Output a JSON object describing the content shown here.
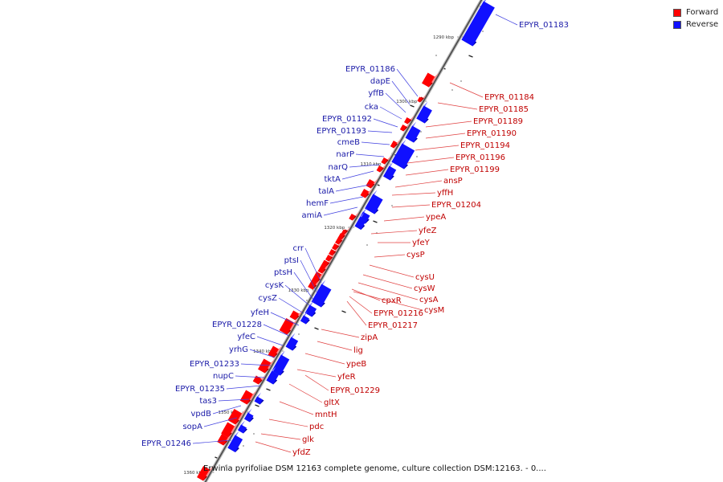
{
  "legend": {
    "forward_label": "Forward",
    "reverse_label": "Reverse",
    "forward_color": "#ff0000",
    "reverse_color": "#1010ff"
  },
  "caption": "Erwinia pyrifoliae DSM 12163 complete genome, culture collection DSM:12163. - 0....",
  "chart_data": {
    "type": "genome-map",
    "position_unit": "kbp",
    "axis_ticks": [
      "1290 kbp",
      "1300 kbp",
      "1310 kbp",
      "1320 kbp",
      "1330 kbp",
      "1340 kbp",
      "1350 kbp",
      "1360 kbp"
    ],
    "forward_genes": [
      "EPYR_01184",
      "EPYR_01185",
      "EPYR_01189",
      "EPYR_01190",
      "EPYR_01194",
      "EPYR_01196",
      "EPYR_01199",
      "ansP",
      "yffH",
      "EPYR_01204",
      "ypeA",
      "yfeZ",
      "yfeY",
      "cysP",
      "cysU",
      "cysW",
      "cysA",
      "cysM",
      "cpxR",
      "EPYR_01216",
      "EPYR_01217",
      "zipA",
      "lig",
      "ypeB",
      "yfeR",
      "EPYR_01229",
      "gltX",
      "mntH",
      "pdc",
      "glk",
      "yfdZ"
    ],
    "reverse_genes": [
      "EPYR_01183",
      "EPYR_01186",
      "dapE",
      "yffB",
      "cka",
      "EPYR_01192",
      "EPYR_01193",
      "cmeB",
      "narP",
      "narQ",
      "tktA",
      "talA",
      "hemF",
      "amiA",
      "crr",
      "ptsI",
      "ptsH",
      "cysK",
      "cysZ",
      "yfeH",
      "EPYR_01228",
      "yfeC",
      "yrhG",
      "EPYR_01233",
      "nupC",
      "EPYR_01235",
      "tas3",
      "vpdB",
      "sopA",
      "EPYR_01246"
    ]
  }
}
